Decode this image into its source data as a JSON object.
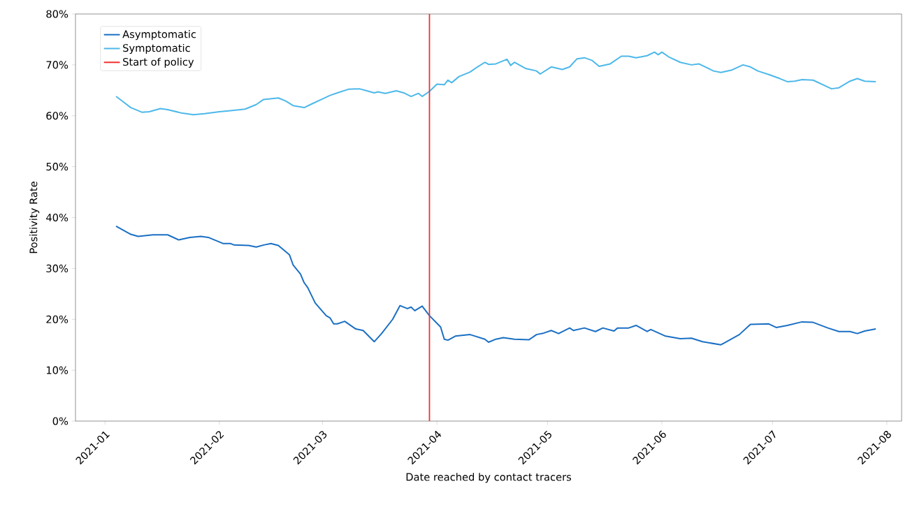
{
  "chart_data": {
    "type": "line",
    "xlabel": "Date reached by contact tracers",
    "ylabel": "Positivity Rate",
    "xlim": [
      "2020-12-24",
      "2021-08-05"
    ],
    "xticks": [
      "2021-01",
      "2021-02",
      "2021-03",
      "2021-04",
      "2021-05",
      "2021-06",
      "2021-07",
      "2021-08"
    ],
    "ylim": [
      0,
      80
    ],
    "yticks": [
      {
        "value": 0,
        "label": "0%"
      },
      {
        "value": 10,
        "label": "10%"
      },
      {
        "value": 20,
        "label": "20%"
      },
      {
        "value": 30,
        "label": "30%"
      },
      {
        "value": 40,
        "label": "40%"
      },
      {
        "value": 50,
        "label": "50%"
      },
      {
        "value": 60,
        "label": "60%"
      },
      {
        "value": 70,
        "label": "70%"
      },
      {
        "value": 80,
        "label": "80%"
      }
    ],
    "legend": "top left",
    "series": [
      {
        "name": "Asymptomatic",
        "color": "#1a6fc4",
        "x": [
          "2021-01-04",
          "2021-01-08",
          "2021-01-10",
          "2021-01-14",
          "2021-01-18",
          "2021-01-21",
          "2021-01-24",
          "2021-01-27",
          "2021-01-29",
          "2021-02-02",
          "2021-02-04",
          "2021-02-05",
          "2021-02-09",
          "2021-02-11",
          "2021-02-13",
          "2021-02-15",
          "2021-02-17",
          "2021-02-20",
          "2021-02-21",
          "2021-02-23",
          "2021-02-24",
          "2021-02-25",
          "2021-02-27",
          "2021-03-02",
          "2021-03-03",
          "2021-03-04",
          "2021-03-05",
          "2021-03-07",
          "2021-03-10",
          "2021-03-12",
          "2021-03-15",
          "2021-03-17",
          "2021-03-20",
          "2021-03-22",
          "2021-03-24",
          "2021-03-25",
          "2021-03-26",
          "2021-03-28",
          "2021-03-30",
          "2021-04-02",
          "2021-04-03",
          "2021-04-04",
          "2021-04-06",
          "2021-04-10",
          "2021-04-14",
          "2021-04-15",
          "2021-04-17",
          "2021-04-19",
          "2021-04-22",
          "2021-04-26",
          "2021-04-28",
          "2021-04-30",
          "2021-05-02",
          "2021-05-04",
          "2021-05-07",
          "2021-05-08",
          "2021-05-11",
          "2021-05-14",
          "2021-05-16",
          "2021-05-19",
          "2021-05-20",
          "2021-05-23",
          "2021-05-25",
          "2021-05-28",
          "2021-05-29",
          "2021-06-02",
          "2021-06-06",
          "2021-06-09",
          "2021-06-12",
          "2021-06-17",
          "2021-06-18",
          "2021-06-22",
          "2021-06-25",
          "2021-06-30",
          "2021-07-02",
          "2021-07-05",
          "2021-07-09",
          "2021-07-12",
          "2021-07-16",
          "2021-07-19",
          "2021-07-22",
          "2021-07-24",
          "2021-07-26",
          "2021-07-29"
        ],
        "values": [
          38.3,
          36.7,
          36.3,
          36.6,
          36.6,
          35.6,
          36.1,
          36.3,
          36.1,
          34.9,
          34.9,
          34.6,
          34.5,
          34.2,
          34.6,
          34.9,
          34.5,
          32.7,
          30.7,
          28.9,
          27.2,
          26.2,
          23.2,
          20.7,
          20.3,
          19.1,
          19.1,
          19.6,
          18.1,
          17.8,
          15.6,
          17.2,
          20.0,
          22.7,
          22.1,
          22.4,
          21.7,
          22.6,
          20.7,
          18.5,
          16.1,
          15.9,
          16.7,
          17.0,
          16.1,
          15.5,
          16.1,
          16.4,
          16.1,
          16.0,
          17.0,
          17.3,
          17.8,
          17.2,
          18.3,
          17.8,
          18.3,
          17.6,
          18.3,
          17.7,
          18.3,
          18.3,
          18.8,
          17.6,
          18.0,
          16.7,
          16.2,
          16.3,
          15.6,
          15.0,
          15.4,
          17.0,
          19.0,
          19.1,
          18.4,
          18.8,
          19.5,
          19.4,
          18.3,
          17.6,
          17.6,
          17.2,
          17.7,
          18.1
        ]
      },
      {
        "name": "Symptomatic",
        "color": "#4db8ea",
        "x": [
          "2021-01-04",
          "2021-01-06",
          "2021-01-08",
          "2021-01-11",
          "2021-01-13",
          "2021-01-16",
          "2021-01-18",
          "2021-01-22",
          "2021-01-25",
          "2021-01-28",
          "2021-02-01",
          "2021-02-04",
          "2021-02-08",
          "2021-02-11",
          "2021-02-13",
          "2021-02-17",
          "2021-02-19",
          "2021-02-21",
          "2021-02-24",
          "2021-02-26",
          "2021-03-01",
          "2021-03-03",
          "2021-03-05",
          "2021-03-08",
          "2021-03-11",
          "2021-03-13",
          "2021-03-15",
          "2021-03-16",
          "2021-03-18",
          "2021-03-21",
          "2021-03-23",
          "2021-03-25",
          "2021-03-27",
          "2021-03-28",
          "2021-03-30",
          "2021-04-01",
          "2021-04-03",
          "2021-04-04",
          "2021-04-05",
          "2021-04-07",
          "2021-04-10",
          "2021-04-12",
          "2021-04-14",
          "2021-04-15",
          "2021-04-17",
          "2021-04-20",
          "2021-04-21",
          "2021-04-22",
          "2021-04-25",
          "2021-04-28",
          "2021-04-29",
          "2021-05-02",
          "2021-05-05",
          "2021-05-07",
          "2021-05-09",
          "2021-05-11",
          "2021-05-13",
          "2021-05-15",
          "2021-05-18",
          "2021-05-21",
          "2021-05-23",
          "2021-05-25",
          "2021-05-28",
          "2021-05-30",
          "2021-05-31",
          "2021-06-01",
          "2021-06-03",
          "2021-06-06",
          "2021-06-09",
          "2021-06-11",
          "2021-06-15",
          "2021-06-17",
          "2021-06-20",
          "2021-06-23",
          "2021-06-25",
          "2021-06-27",
          "2021-06-30",
          "2021-07-03",
          "2021-07-05",
          "2021-07-07",
          "2021-07-09",
          "2021-07-12",
          "2021-07-17",
          "2021-07-19",
          "2021-07-22",
          "2021-07-24",
          "2021-07-26",
          "2021-07-29"
        ],
        "values": [
          63.8,
          62.7,
          61.6,
          60.7,
          60.8,
          61.4,
          61.2,
          60.5,
          60.2,
          60.4,
          60.8,
          61.0,
          61.3,
          62.2,
          63.2,
          63.5,
          62.9,
          62.0,
          61.6,
          62.3,
          63.3,
          64.0,
          64.5,
          65.2,
          65.3,
          64.9,
          64.5,
          64.7,
          64.4,
          64.9,
          64.5,
          63.8,
          64.4,
          63.8,
          64.8,
          66.2,
          66.1,
          67.0,
          66.5,
          67.7,
          68.6,
          69.6,
          70.5,
          70.1,
          70.2,
          71.1,
          69.9,
          70.5,
          69.3,
          68.8,
          68.2,
          69.6,
          69.1,
          69.6,
          71.2,
          71.4,
          70.9,
          69.7,
          70.2,
          71.7,
          71.7,
          71.4,
          71.8,
          72.5,
          72.0,
          72.5,
          71.5,
          70.5,
          70.0,
          70.2,
          68.8,
          68.5,
          69.0,
          70.0,
          69.6,
          68.8,
          68.1,
          67.3,
          66.7,
          66.8,
          67.1,
          67.0,
          65.3,
          65.5,
          66.8,
          67.3,
          66.8,
          66.7
        ]
      },
      {
        "name": "Start of policy",
        "color": "#f03030",
        "x": [
          "2021-03-30",
          "2021-03-30"
        ],
        "values": [
          0,
          80
        ]
      }
    ]
  }
}
